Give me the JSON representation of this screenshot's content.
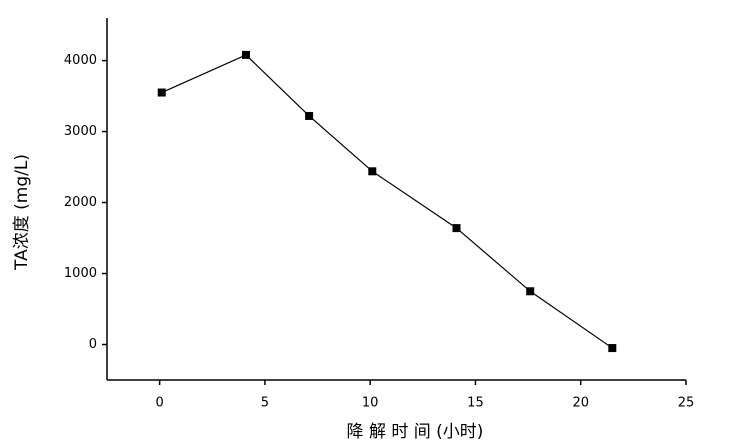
{
  "chart_data": {
    "type": "line",
    "x_label": "降 解 时 间 (小时)",
    "y_label": "TA浓度 (mg/L)",
    "x": [
      0.1,
      4.1,
      7.1,
      10.1,
      14.1,
      17.6,
      21.5
    ],
    "series": [
      {
        "name": "TA",
        "color": "#000000",
        "values": [
          3550,
          4080,
          3220,
          2440,
          1640,
          750,
          -50
        ]
      }
    ],
    "xlim": [
      -2.5,
      25
    ],
    "xticks": [
      0,
      5,
      10,
      15,
      20,
      25
    ],
    "ylim": [
      -500,
      4600
    ],
    "yticks": [
      0,
      1000,
      2000,
      3000,
      4000
    ]
  }
}
